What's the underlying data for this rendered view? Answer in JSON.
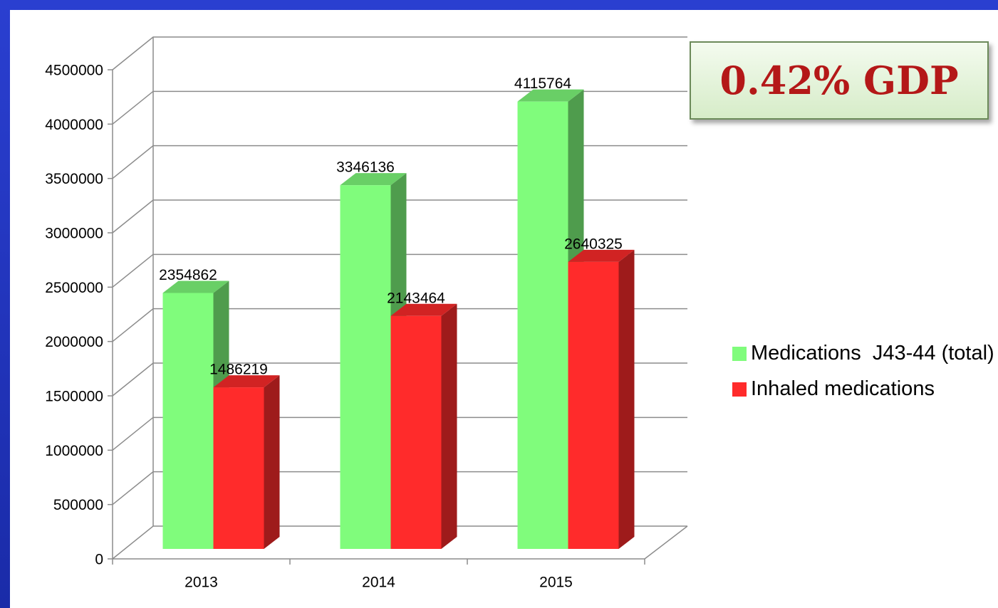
{
  "chart_data": {
    "type": "bar3d",
    "categories": [
      "2013",
      "2014",
      "2015"
    ],
    "series": [
      {
        "name": "Medications  J43-44 (total)",
        "color": "#80fc7c",
        "values": [
          2354862,
          3346136,
          4115764
        ]
      },
      {
        "name": "Inhaled medications",
        "color": "#ff2b2b",
        "values": [
          1486219,
          2143464,
          2640325
        ]
      }
    ],
    "ylim": [
      0,
      4500000
    ],
    "yticks": [
      0,
      500000,
      1000000,
      1500000,
      2000000,
      2500000,
      3000000,
      3500000,
      4000000,
      4500000
    ],
    "grid": true,
    "legend": "right",
    "annotation": "0.42% GDP"
  }
}
